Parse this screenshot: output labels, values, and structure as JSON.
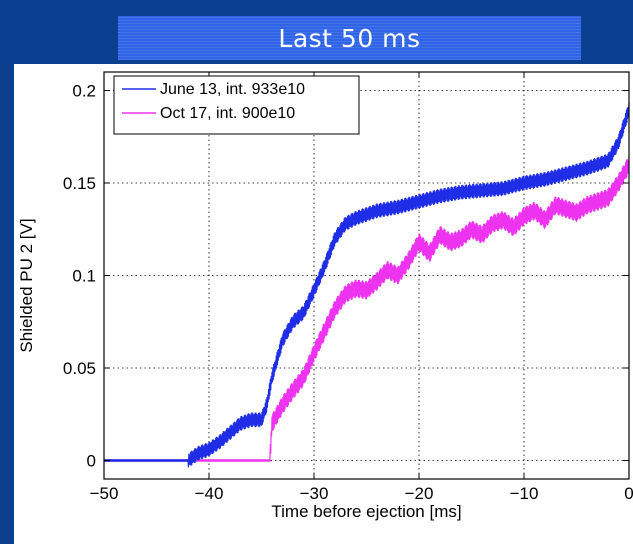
{
  "slide": {
    "title": "Last 50 ms"
  },
  "chart_data": {
    "type": "line",
    "title": "",
    "xlabel": "Time before ejection [ms]",
    "ylabel": "Shielded PU 2 [V]",
    "xlim": [
      -50,
      0
    ],
    "ylim": [
      -0.01,
      0.21
    ],
    "xticks": [
      -50,
      -40,
      -30,
      -20,
      -10,
      0
    ],
    "xtick_labels": [
      "−50",
      "−40",
      "−30",
      "−20",
      "−10",
      "0"
    ],
    "yticks": [
      0,
      0.05,
      0.1,
      0.15,
      0.2
    ],
    "ytick_labels": [
      "0",
      "0.05",
      "0.1",
      "0.15",
      "0.2"
    ],
    "grid": true,
    "legend_position": "top-left",
    "series": [
      {
        "name": "June 13, int. 933e10",
        "color": "#1f2ee6",
        "x": [
          -50,
          -42,
          -41,
          -40,
          -39,
          -38,
          -37,
          -36,
          -35,
          -34.5,
          -34,
          -33,
          -32,
          -31,
          -30,
          -29,
          -28,
          -27,
          -26,
          -25,
          -24,
          -22,
          -20,
          -18,
          -16,
          -14,
          -12,
          -10,
          -8,
          -6,
          -4,
          -2,
          -1,
          0
        ],
        "y": [
          0,
          0,
          0.004,
          0.006,
          0.01,
          0.015,
          0.02,
          0.022,
          0.022,
          0.03,
          0.045,
          0.065,
          0.075,
          0.08,
          0.092,
          0.105,
          0.12,
          0.128,
          0.131,
          0.133,
          0.135,
          0.137,
          0.14,
          0.143,
          0.145,
          0.146,
          0.147,
          0.15,
          0.152,
          0.155,
          0.158,
          0.162,
          0.172,
          0.19
        ],
        "band": 0.008
      },
      {
        "name": "Oct 17, int. 900e10",
        "color": "#ee33f0",
        "x": [
          -50,
          -34.2,
          -34,
          -33,
          -32,
          -31,
          -30,
          -29,
          -28,
          -27,
          -26,
          -25,
          -24,
          -23,
          -22,
          -21,
          -20,
          -19,
          -18,
          -17,
          -16,
          -15,
          -14,
          -13,
          -12,
          -11,
          -10,
          -9,
          -8,
          -7,
          -6,
          -5,
          -4,
          -3,
          -2,
          -1,
          0
        ],
        "y": [
          0,
          0,
          0.02,
          0.03,
          0.038,
          0.045,
          0.058,
          0.07,
          0.082,
          0.09,
          0.093,
          0.092,
          0.097,
          0.103,
          0.1,
          0.108,
          0.118,
          0.112,
          0.122,
          0.118,
          0.12,
          0.125,
          0.122,
          0.128,
          0.13,
          0.126,
          0.132,
          0.135,
          0.13,
          0.138,
          0.136,
          0.134,
          0.138,
          0.14,
          0.142,
          0.15,
          0.16
        ],
        "band": 0.01
      }
    ]
  }
}
